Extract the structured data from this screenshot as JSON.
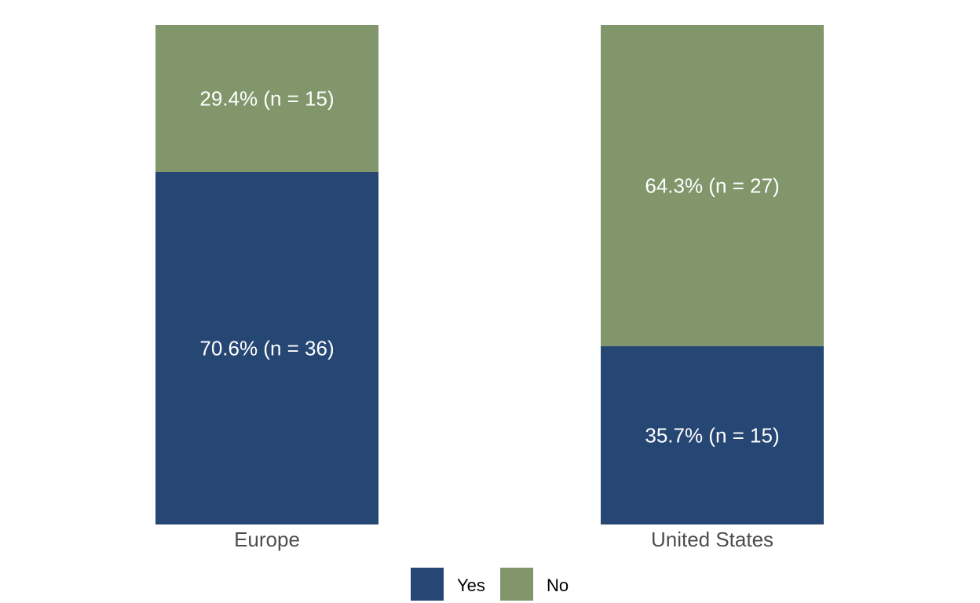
{
  "chart_data": {
    "type": "bar",
    "stacked": true,
    "normalized": true,
    "title": "",
    "xlabel": "",
    "ylabel": "",
    "ylim": [
      0,
      100
    ],
    "grid": false,
    "categories": [
      "Europe",
      "United States"
    ],
    "series": [
      {
        "name": "Yes",
        "color": "#264773",
        "values": [
          70.6,
          35.7
        ],
        "counts": [
          36,
          15
        ],
        "labels": [
          "70.6% (n = 36)",
          "35.7% (n = 15)"
        ]
      },
      {
        "name": "No",
        "color": "#81966b",
        "values": [
          29.4,
          64.3
        ],
        "counts": [
          15,
          27
        ],
        "labels": [
          "29.4% (n = 15)",
          "64.3% (n = 27)"
        ]
      }
    ],
    "legend": {
      "position": "bottom",
      "entries": [
        "Yes",
        "No"
      ]
    }
  }
}
